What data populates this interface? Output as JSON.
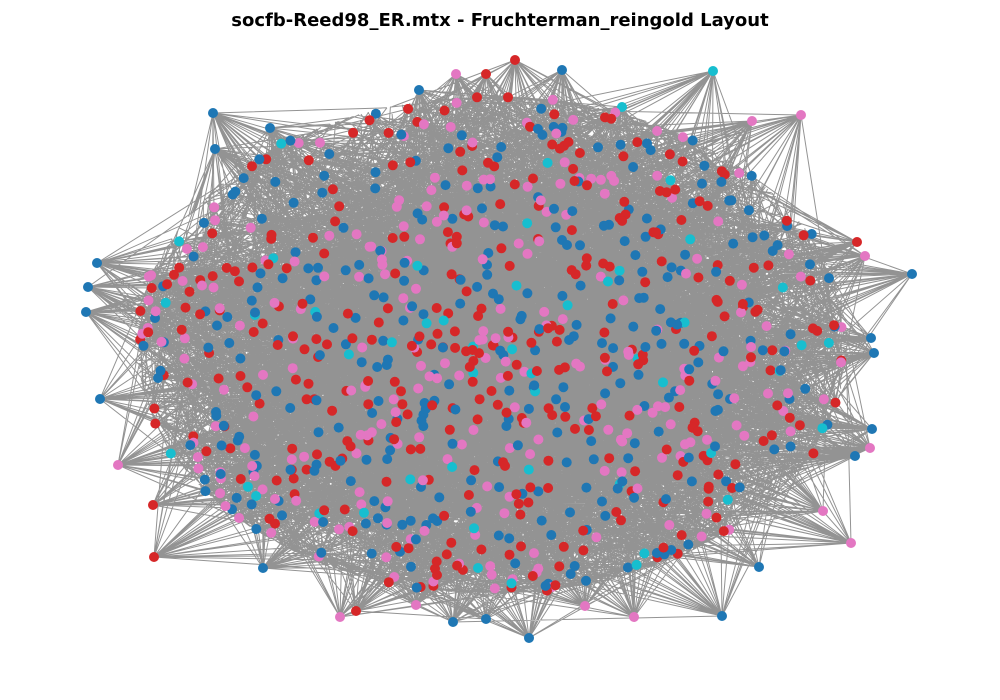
{
  "figure": {
    "title": "socfb-Reed98_ER.mtx - Fruchterman_reingold Layout"
  },
  "graph": {
    "layout": "fruchterman_reingold",
    "edge_color": "#808080",
    "node_palette": [
      "#d62728",
      "#1f77b4",
      "#e377c2",
      "#17becf"
    ],
    "node_color_weights": [
      0.36,
      0.33,
      0.25,
      0.06
    ],
    "node_count": 962
  }
}
